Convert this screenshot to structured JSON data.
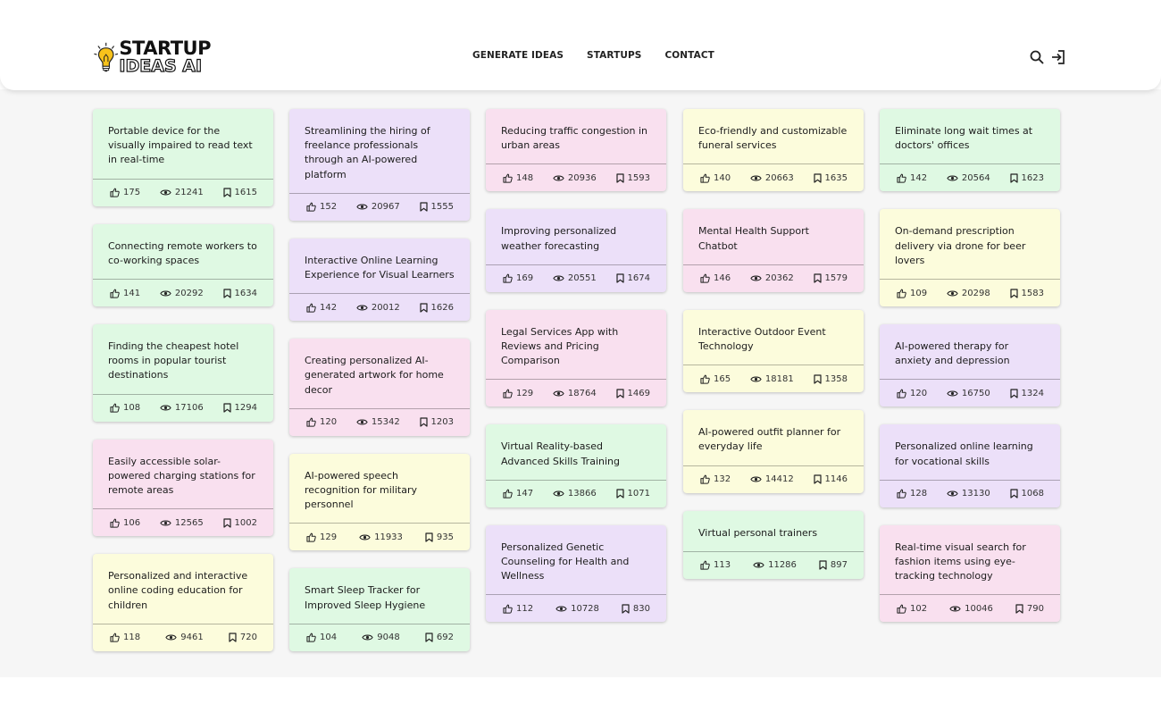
{
  "brand": {
    "line1": "STARTUP",
    "line2": "IDEAS AI"
  },
  "nav": {
    "generate": "GENERATE IDEAS",
    "startups": "STARTUPS",
    "contact": "CONTACT"
  },
  "icons": {
    "search": "search-icon",
    "login": "login-icon",
    "like": "thumbs-up-icon",
    "views": "eye-icon",
    "saves": "bookmark-icon"
  },
  "colors": {
    "green": "#dff9e3",
    "purple": "#ece0f9",
    "pink": "#f9e0ef",
    "yellow": "#fcfcdc"
  },
  "columns": [
    [
      {
        "title": "Portable device for the visually impaired to read text in real-time",
        "likes": "175",
        "views": "21241",
        "saves": "1615",
        "color": "green"
      },
      {
        "title": "Connecting remote workers to co-working spaces",
        "likes": "141",
        "views": "20292",
        "saves": "1634",
        "color": "green"
      },
      {
        "title": "Finding the cheapest hotel rooms in popular tourist destinations",
        "likes": "108",
        "views": "17106",
        "saves": "1294",
        "color": "green"
      },
      {
        "title": "Easily accessible solar-powered charging stations for remote areas",
        "likes": "106",
        "views": "12565",
        "saves": "1002",
        "color": "pink"
      },
      {
        "title": "Personalized and interactive online coding education for children",
        "likes": "118",
        "views": "9461",
        "saves": "720",
        "color": "yellow"
      }
    ],
    [
      {
        "title": "Streamlining the hiring of freelance professionals through an AI-powered platform",
        "likes": "152",
        "views": "20967",
        "saves": "1555",
        "color": "purple"
      },
      {
        "title": "Interactive Online Learning Experience for Visual Learners",
        "likes": "142",
        "views": "20012",
        "saves": "1626",
        "color": "purple"
      },
      {
        "title": "Creating personalized AI-generated artwork for home decor",
        "likes": "120",
        "views": "15342",
        "saves": "1203",
        "color": "pink"
      },
      {
        "title": "AI-powered speech recognition for military personnel",
        "likes": "129",
        "views": "11933",
        "saves": "935",
        "color": "yellow"
      },
      {
        "title": "Smart Sleep Tracker for Improved Sleep Hygiene",
        "likes": "104",
        "views": "9048",
        "saves": "692",
        "color": "green"
      }
    ],
    [
      {
        "title": "Reducing traffic congestion in urban areas",
        "likes": "148",
        "views": "20936",
        "saves": "1593",
        "color": "pink"
      },
      {
        "title": "Improving personalized weather forecasting",
        "likes": "169",
        "views": "20551",
        "saves": "1674",
        "color": "purple"
      },
      {
        "title": "Legal Services App with Reviews and Pricing Comparison",
        "likes": "129",
        "views": "18764",
        "saves": "1469",
        "color": "pink"
      },
      {
        "title": "Virtual Reality-based Advanced Skills Training",
        "likes": "147",
        "views": "13866",
        "saves": "1071",
        "color": "green"
      },
      {
        "title": "Personalized Genetic Counseling for Health and Wellness",
        "likes": "112",
        "views": "10728",
        "saves": "830",
        "color": "purple"
      }
    ],
    [
      {
        "title": "Eco-friendly and customizable funeral services",
        "likes": "140",
        "views": "20663",
        "saves": "1635",
        "color": "yellow"
      },
      {
        "title": "Mental Health Support Chatbot",
        "likes": "146",
        "views": "20362",
        "saves": "1579",
        "color": "pink"
      },
      {
        "title": "Interactive Outdoor Event Technology",
        "likes": "165",
        "views": "18181",
        "saves": "1358",
        "color": "yellow"
      },
      {
        "title": "AI-powered outfit planner for everyday life",
        "likes": "132",
        "views": "14412",
        "saves": "1146",
        "color": "yellow"
      },
      {
        "title": "Virtual personal trainers",
        "likes": "113",
        "views": "11286",
        "saves": "897",
        "color": "green"
      }
    ],
    [
      {
        "title": "Eliminate long wait times at doctors' offices",
        "likes": "142",
        "views": "20564",
        "saves": "1623",
        "color": "green"
      },
      {
        "title": "On-demand prescription delivery via drone for beer lovers",
        "likes": "109",
        "views": "20298",
        "saves": "1583",
        "color": "yellow"
      },
      {
        "title": "AI-powered therapy for anxiety and depression",
        "likes": "120",
        "views": "16750",
        "saves": "1324",
        "color": "purple"
      },
      {
        "title": "Personalized online learning for vocational skills",
        "likes": "128",
        "views": "13130",
        "saves": "1068",
        "color": "purple"
      },
      {
        "title": "Real-time visual search for fashion items using eye-tracking technology",
        "likes": "102",
        "views": "10046",
        "saves": "790",
        "color": "pink"
      }
    ]
  ]
}
